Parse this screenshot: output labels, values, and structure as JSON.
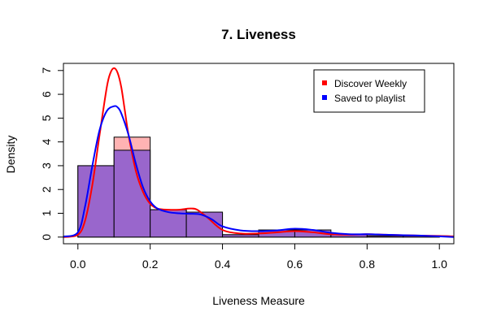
{
  "chart_data": {
    "type": "histogram",
    "title": "7. Liveness",
    "xlabel": "Liveness Measure",
    "ylabel": "Density",
    "xlim": [
      -0.04,
      1.04
    ],
    "ylim": [
      -0.28,
      7.3
    ],
    "x_ticks": [
      "0.0",
      "0.2",
      "0.4",
      "0.6",
      "0.8",
      "1.0"
    ],
    "y_ticks": [
      "0",
      "1",
      "2",
      "3",
      "4",
      "5",
      "6",
      "7"
    ],
    "legend": {
      "placement": "top-right",
      "entries": [
        "Discover Weekly",
        "Saved to playlist"
      ]
    },
    "bin_edges": [
      0.0,
      0.1,
      0.2,
      0.3,
      0.4,
      0.5,
      0.6,
      0.7,
      0.8,
      0.9,
      1.0
    ],
    "series": [
      {
        "name": "Discover Weekly",
        "color": "#ff0000",
        "fill": "#ffb3b3",
        "histogram_density": [
          3.0,
          4.2,
          1.15,
          1.0,
          0.1,
          0.2,
          0.2,
          0.1,
          0.05,
          0.05
        ],
        "kde": {
          "x": [
            -0.04,
            0.0,
            0.02,
            0.04,
            0.06,
            0.08,
            0.09,
            0.1,
            0.11,
            0.12,
            0.13,
            0.14,
            0.16,
            0.18,
            0.2,
            0.22,
            0.25,
            0.28,
            0.31,
            0.33,
            0.36,
            0.4,
            0.45,
            0.5,
            0.55,
            0.6,
            0.65,
            0.7,
            0.75,
            0.8,
            0.85,
            0.9,
            0.95,
            1.0,
            1.04
          ],
          "y": [
            0.0,
            0.1,
            0.7,
            2.2,
            4.3,
            6.3,
            6.9,
            7.1,
            6.9,
            6.3,
            5.3,
            4.3,
            2.8,
            1.9,
            1.4,
            1.2,
            1.15,
            1.15,
            1.2,
            1.15,
            0.8,
            0.3,
            0.15,
            0.15,
            0.2,
            0.25,
            0.2,
            0.12,
            0.1,
            0.12,
            0.1,
            0.08,
            0.06,
            0.05,
            0.03
          ]
        }
      },
      {
        "name": "Saved to playlist",
        "color": "#0000ff",
        "fill": "#9966cc",
        "histogram_density": [
          3.0,
          3.65,
          1.15,
          1.05,
          0.1,
          0.3,
          0.3,
          0.1,
          0.05,
          0.05
        ],
        "kde": {
          "x": [
            -0.04,
            0.0,
            0.02,
            0.04,
            0.06,
            0.08,
            0.1,
            0.11,
            0.12,
            0.14,
            0.16,
            0.18,
            0.2,
            0.22,
            0.25,
            0.28,
            0.31,
            0.34,
            0.37,
            0.4,
            0.45,
            0.5,
            0.55,
            0.6,
            0.65,
            0.7,
            0.75,
            0.8,
            0.85,
            0.9,
            0.95,
            1.0,
            1.04
          ],
          "y": [
            0.02,
            0.2,
            1.3,
            3.0,
            4.5,
            5.3,
            5.5,
            5.45,
            5.2,
            4.3,
            3.1,
            2.1,
            1.5,
            1.2,
            1.05,
            1.0,
            0.98,
            0.95,
            0.75,
            0.45,
            0.28,
            0.25,
            0.28,
            0.35,
            0.3,
            0.18,
            0.12,
            0.12,
            0.1,
            0.08,
            0.06,
            0.03,
            0.0
          ]
        }
      }
    ]
  }
}
